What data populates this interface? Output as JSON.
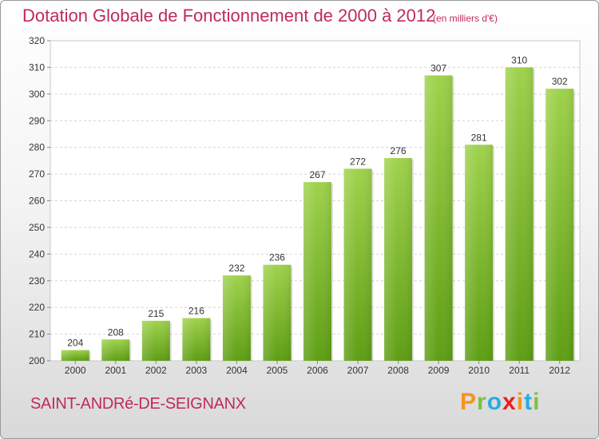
{
  "chart_data": {
    "type": "bar",
    "title": "Dotation Globale de Fonctionnement de 2000 à 2012",
    "subtitle": "(en milliers d'€)",
    "categories": [
      "2000",
      "2001",
      "2002",
      "2003",
      "2004",
      "2005",
      "2006",
      "2007",
      "2008",
      "2009",
      "2010",
      "2011",
      "2012"
    ],
    "values": [
      204,
      208,
      215,
      216,
      232,
      236,
      267,
      272,
      276,
      307,
      281,
      310,
      302
    ],
    "ylim": [
      200,
      320
    ],
    "yticks": [
      200,
      210,
      220,
      230,
      240,
      250,
      260,
      270,
      280,
      290,
      300,
      310,
      320
    ],
    "grid": true,
    "bar_color": "#7fbf2e",
    "title_color": "#c02a5a"
  },
  "footer": {
    "commune": "SAINT-ANDRé-DE-SEIGNANX",
    "brand_letters": [
      "P",
      "r",
      "o",
      "x",
      "i",
      "t",
      "i"
    ],
    "brand_colors": [
      "#f7931e",
      "#7ac143",
      "#29abe2",
      "#ec1c24",
      "#f7931e",
      "#29abe2",
      "#7ac143"
    ]
  }
}
